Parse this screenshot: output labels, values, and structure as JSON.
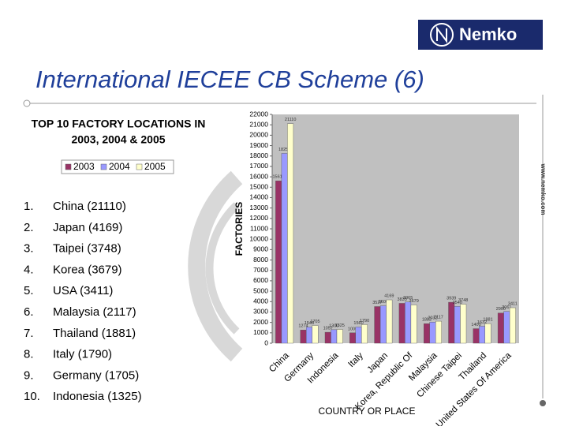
{
  "header": {
    "logo": "Nemko",
    "title": "International IECEE CB Scheme (6)",
    "website": "www.nemko.com"
  },
  "sidebar": {
    "heading": [
      "TOP 10 FACTORY LOCATIONS IN",
      "2003, 2004 & 2005"
    ],
    "list": [
      [
        "1.",
        "China (21110)"
      ],
      [
        "2.",
        "Japan (4169)"
      ],
      [
        "3.",
        "Taipei (3748)"
      ],
      [
        "4.",
        "Korea (3679)"
      ],
      [
        "5.",
        "USA (3411)"
      ],
      [
        "6.",
        "Malaysia (2117)"
      ],
      [
        "7.",
        "Thailand (1881)"
      ],
      [
        "8.",
        "Italy (1790)"
      ],
      [
        "9.",
        "Germany (1705)"
      ],
      [
        "10.",
        "Indonesia (1325)"
      ]
    ]
  },
  "chart_data": {
    "type": "bar",
    "y_label": "FACTORIES",
    "x_label": "COUNTRY OR PLACE",
    "categories": [
      "China",
      "Germany",
      "Indonesia",
      "Italy",
      "Japan",
      "Korea, Republic Of",
      "Malaysia",
      "Chinese Taipei",
      "Thailand",
      "United States Of America"
    ],
    "series": [
      {
        "name": "2003",
        "color": "#993366",
        "values": [
          15615,
          1274,
          1057,
          1000,
          3527,
          3835,
          1882,
          3939,
          1400,
          2900
        ]
      },
      {
        "name": "2004",
        "color": "#9999ff",
        "values": [
          18251,
          1546,
          1300,
          1560,
          3600,
          3965,
          2032,
          3540,
          1632,
          3061
        ]
      },
      {
        "name": "2005",
        "color": "#ffffcc",
        "values": [
          21110,
          1705,
          1325,
          1790,
          4169,
          3679,
          2117,
          3748,
          1881,
          3411
        ]
      }
    ],
    "ylim": [
      0,
      22000
    ],
    "yticks": [
      0,
      1000,
      2000,
      3000,
      4000,
      5000,
      6000,
      7000,
      8000,
      9000,
      10000,
      11000,
      12000,
      13000,
      14000,
      15000,
      16000,
      17000,
      18000,
      19000,
      20000,
      21000,
      22000
    ],
    "grid": false,
    "plot_background": "#c0c0c0"
  }
}
